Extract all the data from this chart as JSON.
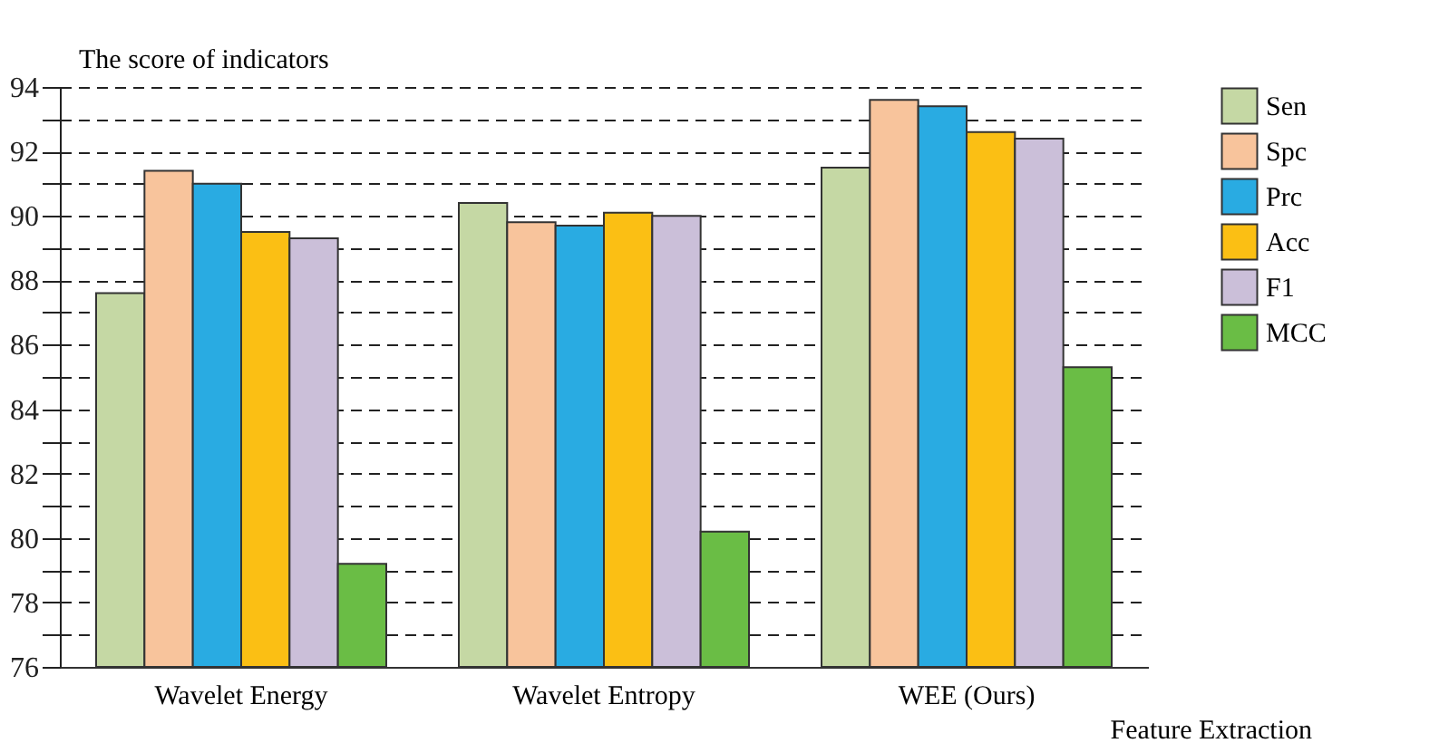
{
  "chart_data": {
    "type": "bar",
    "ylabel": "The score of indicators",
    "xlabel": "Feature Extraction",
    "categories": [
      "Wavelet Energy",
      "Wavelet Entropy",
      "WEE (Ours)"
    ],
    "series": [
      {
        "name": "Sen",
        "color": "#c5d8a4",
        "values": [
          87.6,
          90.4,
          91.5
        ]
      },
      {
        "name": "Spc",
        "color": "#f8c49c",
        "values": [
          91.4,
          89.8,
          93.6
        ]
      },
      {
        "name": "Prc",
        "color": "#29abe2",
        "values": [
          91.0,
          89.7,
          93.4
        ]
      },
      {
        "name": "Acc",
        "color": "#fbbf14",
        "values": [
          89.5,
          90.1,
          92.6
        ]
      },
      {
        "name": "F1",
        "color": "#cbbfd9",
        "values": [
          89.3,
          90.0,
          92.4
        ]
      },
      {
        "name": "MCC",
        "color": "#6abd45",
        "values": [
          79.2,
          80.2,
          85.3
        ]
      }
    ],
    "ylim": [
      76,
      94
    ],
    "yticks": [
      76,
      {
        "value": 77,
        "label": null
      },
      78,
      {
        "value": 79,
        "label": null
      },
      80,
      {
        "value": 81,
        "label": null
      },
      82,
      {
        "value": 83,
        "label": null
      },
      84,
      {
        "value": 85,
        "label": null
      },
      86,
      {
        "value": 87,
        "label": null
      },
      88,
      {
        "value": 89,
        "label": null
      },
      90,
      {
        "value": 91,
        "label": null
      },
      92,
      {
        "value": 93,
        "label": null
      },
      94
    ],
    "grid": "y",
    "legend": "right"
  }
}
